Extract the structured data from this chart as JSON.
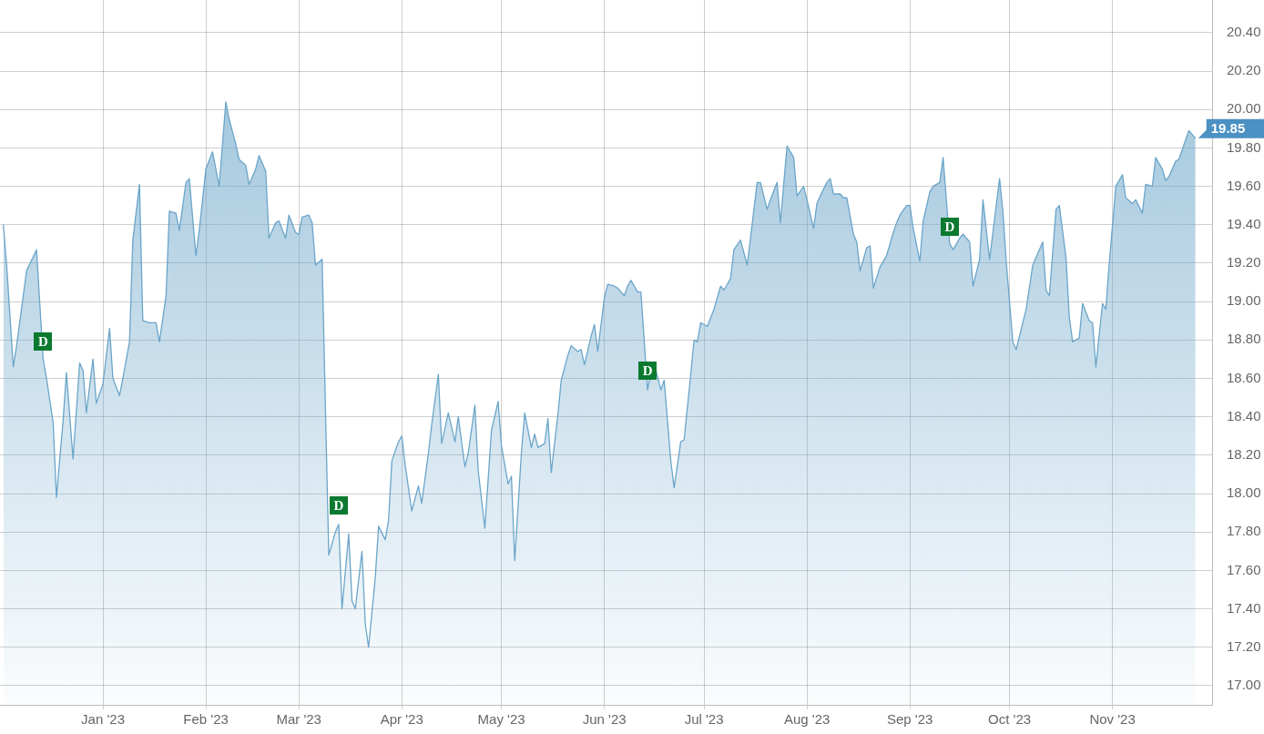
{
  "chart_data": {
    "type": "area",
    "color": "#6ba5c9",
    "grid": true,
    "xlim": [
      "2022-12-01",
      "2023-12-01"
    ],
    "xticks": [
      {
        "value": "2023-01-01",
        "label": "Jan '23"
      },
      {
        "value": "2023-02-01",
        "label": "Feb '23"
      },
      {
        "value": "2023-03-01",
        "label": "Mar '23"
      },
      {
        "value": "2023-04-01",
        "label": "Apr '23"
      },
      {
        "value": "2023-05-01",
        "label": "May '23"
      },
      {
        "value": "2023-06-01",
        "label": "Jun '23"
      },
      {
        "value": "2023-07-01",
        "label": "Jul '23"
      },
      {
        "value": "2023-08-01",
        "label": "Aug '23"
      },
      {
        "value": "2023-09-01",
        "label": "Sep '23"
      },
      {
        "value": "2023-10-01",
        "label": "Oct '23"
      },
      {
        "value": "2023-11-01",
        "label": "Nov '23"
      }
    ],
    "ylim": [
      16.9,
      20.57
    ],
    "yticks": [
      {
        "value": 17,
        "label": "17.00"
      },
      {
        "value": 17.2,
        "label": "17.20"
      },
      {
        "value": 17.4,
        "label": "17.40"
      },
      {
        "value": 17.6,
        "label": "17.60"
      },
      {
        "value": 17.8,
        "label": "17.80"
      },
      {
        "value": 18,
        "label": "18.00"
      },
      {
        "value": 18.2,
        "label": "18.20"
      },
      {
        "value": 18.4,
        "label": "18.40"
      },
      {
        "value": 18.6,
        "label": "18.60"
      },
      {
        "value": 18.8,
        "label": "18.80"
      },
      {
        "value": 19,
        "label": "19.00"
      },
      {
        "value": 19.2,
        "label": "19.20"
      },
      {
        "value": 19.4,
        "label": "19.40"
      },
      {
        "value": 19.6,
        "label": "19.60"
      },
      {
        "value": 19.8,
        "label": "19.80"
      },
      {
        "value": 20,
        "label": "20.00"
      },
      {
        "value": 20.2,
        "label": "20.20"
      },
      {
        "value": 20.4,
        "label": "20.40"
      }
    ],
    "annotations": [
      {
        "text": "D",
        "x": "2022-12-14",
        "y": 18.79
      },
      {
        "text": "D",
        "x": "2023-03-13",
        "y": 17.94
      },
      {
        "text": "D",
        "x": "2023-06-14",
        "y": 18.64
      },
      {
        "text": "D",
        "x": "2023-09-13",
        "y": 19.39
      }
    ],
    "x": [
      "2022-12-02",
      "2022-12-03",
      "2022-12-05",
      "2022-12-06",
      "2022-12-09",
      "2022-12-12",
      "2022-12-14",
      "2022-12-15",
      "2022-12-17",
      "2022-12-18",
      "2022-12-20",
      "2022-12-21",
      "2022-12-23",
      "2022-12-25",
      "2022-12-26",
      "2022-12-27",
      "2022-12-29",
      "2022-12-30",
      "2023-01-01",
      "2023-01-03",
      "2023-01-04",
      "2023-01-06",
      "2023-01-07",
      "2023-01-09",
      "2023-01-10",
      "2023-01-12",
      "2023-01-13",
      "2023-01-15",
      "2023-01-17",
      "2023-01-18",
      "2023-01-20",
      "2023-01-21",
      "2023-01-23",
      "2023-01-24",
      "2023-01-26",
      "2023-01-27",
      "2023-01-29",
      "2023-01-30",
      "2023-02-01",
      "2023-02-03",
      "2023-02-05",
      "2023-02-07",
      "2023-02-08",
      "2023-02-10",
      "2023-02-11",
      "2023-02-13",
      "2023-02-14",
      "2023-02-16",
      "2023-02-17",
      "2023-02-19",
      "2023-02-20",
      "2023-02-22",
      "2023-02-23",
      "2023-02-25",
      "2023-02-26",
      "2023-02-28",
      "2023-03-01",
      "2023-03-02",
      "2023-03-04",
      "2023-03-05",
      "2023-03-06",
      "2023-03-08",
      "2023-03-10",
      "2023-03-12",
      "2023-03-13",
      "2023-03-14",
      "2023-03-16",
      "2023-03-17",
      "2023-03-18",
      "2023-03-20",
      "2023-03-21",
      "2023-03-22",
      "2023-03-24",
      "2023-03-25",
      "2023-03-27",
      "2023-03-28",
      "2023-03-29",
      "2023-03-31",
      "2023-04-01",
      "2023-04-02",
      "2023-04-04",
      "2023-04-06",
      "2023-04-07",
      "2023-04-09",
      "2023-04-10",
      "2023-04-12",
      "2023-04-13",
      "2023-04-15",
      "2023-04-17",
      "2023-04-18",
      "2023-04-20",
      "2023-04-21",
      "2023-04-23",
      "2023-04-24",
      "2023-04-26",
      "2023-04-28",
      "2023-04-30",
      "2023-05-01",
      "2023-05-03",
      "2023-05-04",
      "2023-05-05",
      "2023-05-07",
      "2023-05-08",
      "2023-05-10",
      "2023-05-11",
      "2023-05-12",
      "2023-05-14",
      "2023-05-15",
      "2023-05-16",
      "2023-05-18",
      "2023-05-19",
      "2023-05-21",
      "2023-05-22",
      "2023-05-24",
      "2023-05-25",
      "2023-05-26",
      "2023-05-28",
      "2023-05-29",
      "2023-05-30",
      "2023-06-01",
      "2023-06-02",
      "2023-06-04",
      "2023-06-05",
      "2023-06-07",
      "2023-06-08",
      "2023-06-09",
      "2023-06-11",
      "2023-06-12",
      "2023-06-14",
      "2023-06-15",
      "2023-06-16",
      "2023-06-18",
      "2023-06-19",
      "2023-06-21",
      "2023-06-22",
      "2023-06-24",
      "2023-06-25",
      "2023-06-27",
      "2023-06-28",
      "2023-06-29",
      "2023-06-30",
      "2023-07-02",
      "2023-07-04",
      "2023-07-06",
      "2023-07-07",
      "2023-07-09",
      "2023-07-10",
      "2023-07-12",
      "2023-07-14",
      "2023-07-15",
      "2023-07-17",
      "2023-07-18",
      "2023-07-20",
      "2023-07-21",
      "2023-07-23",
      "2023-07-24",
      "2023-07-26",
      "2023-07-28",
      "2023-07-29",
      "2023-07-31",
      "2023-08-01",
      "2023-08-03",
      "2023-08-04",
      "2023-08-05",
      "2023-08-07",
      "2023-08-08",
      "2023-08-09",
      "2023-08-11",
      "2023-08-12",
      "2023-08-13",
      "2023-08-15",
      "2023-08-16",
      "2023-08-17",
      "2023-08-19",
      "2023-08-20",
      "2023-08-21",
      "2023-08-23",
      "2023-08-24",
      "2023-08-25",
      "2023-08-27",
      "2023-08-28",
      "2023-08-29",
      "2023-08-31",
      "2023-09-01",
      "2023-09-02",
      "2023-09-04",
      "2023-09-05",
      "2023-09-07",
      "2023-09-08",
      "2023-09-10",
      "2023-09-11",
      "2023-09-13",
      "2023-09-14",
      "2023-09-16",
      "2023-09-17",
      "2023-09-19",
      "2023-09-20",
      "2023-09-22",
      "2023-09-23",
      "2023-09-25",
      "2023-09-28",
      "2023-09-29",
      "2023-09-30",
      "2023-10-02",
      "2023-10-03",
      "2023-10-05",
      "2023-10-06",
      "2023-10-08",
      "2023-10-09",
      "2023-10-11",
      "2023-10-12",
      "2023-10-13",
      "2023-10-15",
      "2023-10-16",
      "2023-10-18",
      "2023-10-19",
      "2023-10-20",
      "2023-10-22",
      "2023-10-23",
      "2023-10-25",
      "2023-10-26",
      "2023-10-27",
      "2023-10-29",
      "2023-10-30",
      "2023-10-31",
      "2023-11-02",
      "2023-11-04",
      "2023-11-05",
      "2023-11-07",
      "2023-11-08",
      "2023-11-10",
      "2023-11-11",
      "2023-11-13",
      "2023-11-14",
      "2023-11-16",
      "2023-11-17",
      "2023-11-18",
      "2023-11-20",
      "2023-11-21",
      "2023-11-23",
      "2023-11-24",
      "2023-11-26"
    ],
    "values": [
      19.4,
      19.19,
      18.66,
      18.77,
      19.16,
      19.27,
      18.7,
      18.6,
      18.37,
      17.98,
      18.38,
      18.63,
      18.18,
      18.68,
      18.64,
      18.42,
      18.7,
      18.47,
      18.57,
      18.86,
      18.6,
      18.51,
      18.6,
      18.79,
      19.32,
      19.61,
      18.9,
      18.89,
      18.89,
      18.79,
      19.03,
      19.47,
      19.46,
      19.37,
      19.62,
      19.64,
      19.24,
      19.37,
      19.69,
      19.78,
      19.6,
      20.04,
      19.95,
      19.82,
      19.74,
      19.71,
      19.61,
      19.69,
      19.76,
      19.68,
      19.33,
      19.41,
      19.42,
      19.33,
      19.45,
      19.36,
      19.35,
      19.44,
      19.45,
      19.41,
      19.19,
      19.22,
      17.68,
      17.8,
      17.84,
      17.4,
      17.79,
      17.44,
      17.4,
      17.7,
      17.32,
      17.2,
      17.56,
      17.83,
      17.76,
      17.86,
      18.17,
      18.27,
      18.3,
      18.15,
      17.91,
      18.04,
      17.95,
      18.21,
      18.36,
      18.62,
      18.26,
      18.42,
      18.27,
      18.4,
      18.14,
      18.21,
      18.46,
      18.12,
      17.82,
      18.33,
      18.48,
      18.25,
      18.05,
      18.09,
      17.65,
      18.21,
      18.42,
      18.24,
      18.31,
      18.24,
      18.26,
      18.39,
      18.11,
      18.41,
      18.59,
      18.72,
      18.77,
      18.74,
      18.75,
      18.67,
      18.82,
      18.88,
      18.74,
      19.02,
      19.09,
      19.08,
      19.07,
      19.03,
      19.08,
      19.11,
      19.05,
      19.05,
      18.54,
      18.63,
      18.68,
      18.54,
      18.59,
      18.17,
      18.03,
      18.27,
      18.28,
      18.62,
      18.8,
      18.79,
      18.89,
      18.87,
      18.96,
      19.08,
      19.06,
      19.12,
      19.27,
      19.32,
      19.19,
      19.33,
      19.62,
      19.62,
      19.48,
      19.53,
      19.62,
      19.41,
      19.81,
      19.75,
      19.55,
      19.6,
      19.53,
      19.38,
      19.51,
      19.55,
      19.62,
      19.64,
      19.56,
      19.56,
      19.54,
      19.54,
      19.35,
      19.31,
      19.16,
      19.28,
      19.29,
      19.07,
      19.18,
      19.21,
      19.24,
      19.36,
      19.41,
      19.45,
      19.5,
      19.5,
      19.38,
      19.21,
      19.42,
      19.57,
      19.6,
      19.62,
      19.75,
      19.3,
      19.27,
      19.33,
      19.35,
      19.31,
      19.08,
      19.22,
      19.53,
      19.22,
      19.64,
      19.47,
      19.21,
      18.79,
      18.75,
      18.89,
      18.96,
      19.19,
      19.23,
      19.31,
      19.06,
      19.03,
      19.48,
      19.5,
      19.23,
      18.92,
      18.79,
      18.81,
      18.99,
      18.9,
      18.89,
      18.66,
      18.99,
      18.96,
      19.19,
      19.6,
      19.66,
      19.54,
      19.51,
      19.53,
      19.46,
      19.61,
      19.6,
      19.75,
      19.69,
      19.63,
      19.65,
      19.73,
      19.74,
      19.84,
      19.89,
      19.85
    ],
    "value_labels": [
      null,
      null,
      null,
      null,
      null,
      null,
      null,
      null,
      null,
      null,
      null,
      null,
      null,
      null,
      null,
      null,
      null,
      null,
      null,
      null,
      null,
      null,
      null,
      null,
      null,
      null,
      null,
      null,
      null,
      null,
      null,
      null,
      null,
      null,
      null,
      null,
      null,
      null,
      null,
      null,
      null,
      null,
      null,
      null,
      null,
      null,
      null,
      null,
      null,
      null,
      null,
      null,
      null,
      null,
      null,
      null,
      null,
      null,
      null,
      null,
      null,
      null,
      null,
      null,
      null,
      null,
      null,
      null,
      null,
      null,
      null,
      null,
      null,
      null,
      null,
      null,
      null,
      null,
      null,
      null,
      null,
      null,
      null,
      null,
      null,
      null,
      null,
      null,
      null,
      null,
      null,
      null,
      null,
      null,
      null,
      null,
      null,
      null,
      null,
      null,
      null,
      null,
      null,
      null,
      null,
      null,
      null,
      null,
      null,
      null,
      null,
      null,
      null,
      null,
      null,
      null,
      null,
      null,
      null,
      null,
      null,
      null,
      null,
      null,
      null,
      null,
      null,
      null,
      null,
      null,
      null,
      null,
      null,
      null,
      null,
      null,
      null,
      null,
      null,
      null,
      null,
      null,
      null,
      null,
      null,
      null,
      null,
      null,
      null,
      null,
      null,
      null,
      null,
      null,
      null,
      null,
      null,
      null,
      null,
      null,
      null,
      null,
      null,
      null,
      null,
      null,
      null,
      null,
      null,
      null,
      null,
      null,
      null,
      null,
      null,
      null,
      null,
      null,
      null,
      null,
      null,
      null,
      null,
      null,
      null,
      null,
      null,
      null,
      null,
      null,
      null,
      null,
      null,
      null,
      null,
      null,
      null,
      null,
      null,
      null,
      null,
      null,
      null,
      null,
      null,
      null,
      null,
      null,
      null,
      null,
      null,
      null,
      null,
      null,
      null,
      null,
      null,
      null,
      null,
      null,
      null,
      null,
      null,
      null,
      null,
      null,
      null,
      null,
      null,
      null,
      null,
      null,
      null,
      null,
      null,
      null,
      null,
      null,
      null,
      null,
      null,
      "19.85"
    ]
  }
}
